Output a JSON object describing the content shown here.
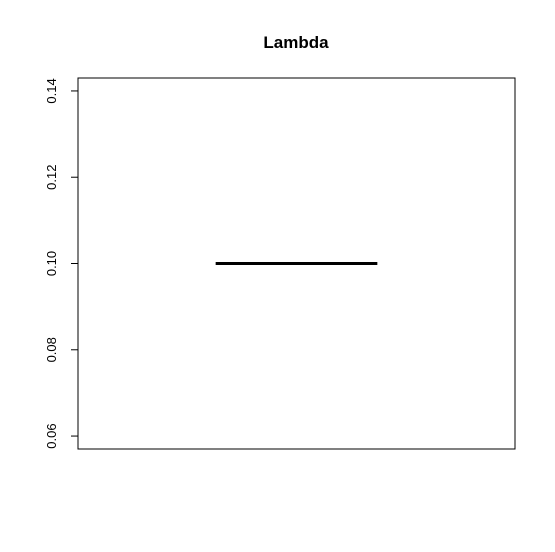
{
  "chart_data": {
    "type": "box",
    "title": "Lambda",
    "xlabel": "",
    "ylabel": "",
    "ylim": [
      0.057,
      0.143
    ],
    "yticks": [
      0.06,
      0.08,
      0.1,
      0.12,
      0.14
    ],
    "ytick_labels": [
      "0.06",
      "0.08",
      "0.10",
      "0.12",
      "0.14"
    ],
    "grid": false,
    "boxes": [
      {
        "min": 0.1,
        "q1": 0.1,
        "median": 0.1,
        "q3": 0.1,
        "max": 0.1
      }
    ],
    "colors": {
      "line": "#000000",
      "background": "#ffffff"
    }
  }
}
